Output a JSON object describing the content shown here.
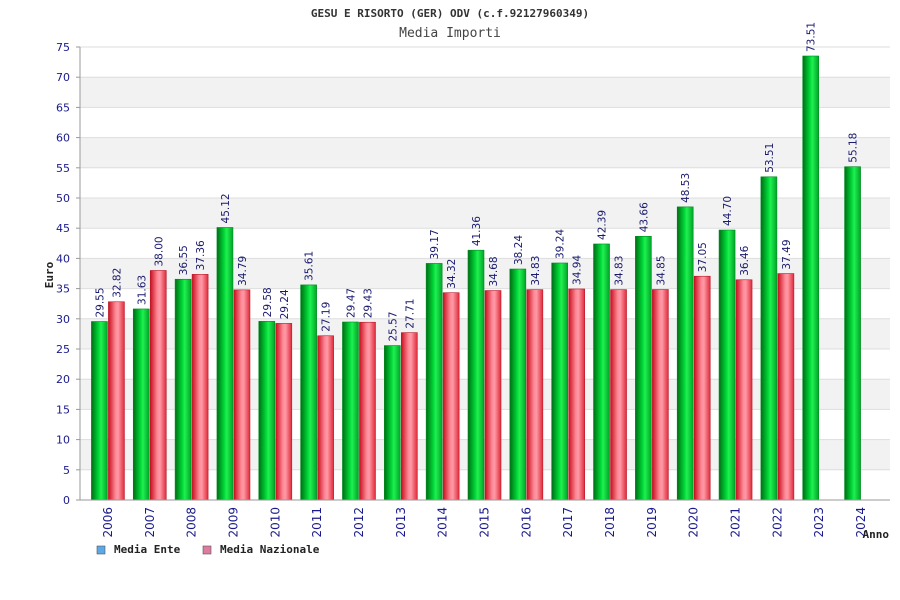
{
  "chart_data": {
    "type": "bar",
    "title": "GESU E RISORTO (GER) ODV (c.f.92127960349)",
    "subtitle": "Media Importi",
    "xlabel": "Anno",
    "ylabel": "Euro",
    "ylim": [
      0,
      75
    ],
    "yticks": [
      0,
      5,
      10,
      15,
      20,
      25,
      30,
      35,
      40,
      45,
      50,
      55,
      60,
      65,
      70,
      75
    ],
    "grid": true,
    "legend_position": "bottom-left",
    "categories": [
      "2006",
      "2007",
      "2008",
      "2009",
      "2010",
      "2011",
      "2012",
      "2013",
      "2014",
      "2015",
      "2016",
      "2017",
      "2018",
      "2019",
      "2020",
      "2021",
      "2022",
      "2023",
      "2024"
    ],
    "series": [
      {
        "name": "Media Ente",
        "color": "#00b82e",
        "legend_color": "#5ca8e8",
        "values": [
          29.55,
          31.63,
          36.55,
          45.12,
          29.58,
          35.61,
          29.47,
          25.57,
          39.17,
          41.36,
          38.24,
          39.24,
          42.39,
          43.66,
          48.53,
          44.7,
          53.51,
          73.51,
          55.18
        ],
        "labels": [
          "29.55",
          "31.63",
          "36.55",
          "45.12",
          "29.58",
          "35.61",
          "29.47",
          "25.57",
          "39.17",
          "41.36",
          "38.24",
          "39.24",
          "42.39",
          "43.66",
          "48.53",
          "44.70",
          "53.51",
          "73.51",
          "55.18"
        ]
      },
      {
        "name": "Media Nazionale",
        "color": "#e8283a",
        "legend_color": "#e07aa0",
        "values": [
          32.82,
          38.0,
          37.36,
          34.79,
          29.24,
          27.19,
          29.43,
          27.71,
          34.32,
          34.68,
          34.83,
          34.94,
          34.83,
          34.85,
          37.05,
          36.46,
          37.49,
          null,
          null
        ],
        "labels": [
          "32.82",
          "38.00",
          "37.36",
          "34.79",
          "29.24",
          "27.19",
          "29.43",
          "27.71",
          "34.32",
          "34.68",
          "34.83",
          "34.94",
          "34.83",
          "34.85",
          "37.05",
          "36.46",
          "37.49",
          "",
          ""
        ]
      }
    ]
  }
}
